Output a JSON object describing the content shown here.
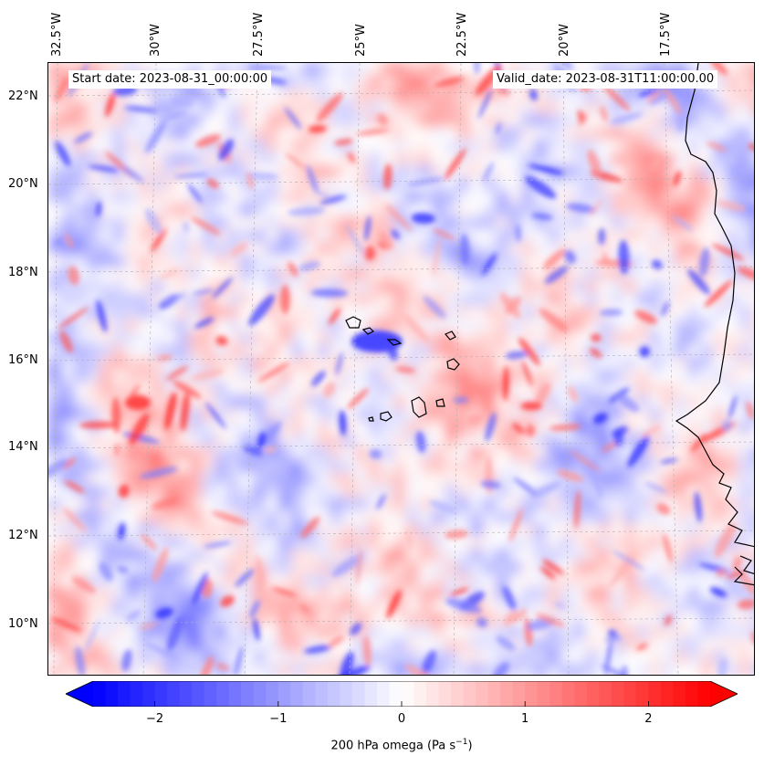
{
  "map": {
    "region": "Cabo Verde / West Africa coast",
    "lon_labels": [
      "32.5°W",
      "30°W",
      "27.5°W",
      "25°W",
      "22.5°W",
      "20°W",
      "17.5°W"
    ],
    "lat_labels": [
      "22°N",
      "20°N",
      "18°N",
      "16°N",
      "14°N",
      "12°N",
      "10°N"
    ],
    "start_date": "Start date: 2023-08-31_00:00:00",
    "valid_date": "Valid_date: 2023-08-31T11:00:00.00"
  },
  "colorbar": {
    "tick_labels": [
      "−2",
      "−1",
      "0",
      "1",
      "2"
    ],
    "ticks": [
      -2,
      -1,
      0,
      1,
      2
    ],
    "range": [
      -2.5,
      2.5
    ],
    "label_main": "200 hPa omega (Pa s",
    "label_sup": "−1",
    "label_end": ")",
    "colormap": "bwr",
    "negative_color": "#0000ff",
    "zero_color": "#ffffff",
    "positive_color": "#ff0000"
  },
  "colors": {
    "coastline": "#000000",
    "gridline": "#b0b0b0"
  }
}
